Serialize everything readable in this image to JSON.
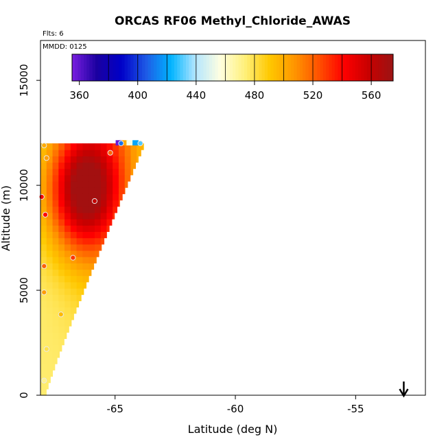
{
  "chart_data": {
    "type": "heatmap",
    "title": "ORCAS RF06 Methyl_Chloride_AWAS",
    "flights_note": "Flts: 6",
    "date_note": "MMDD: 0125",
    "xlabel": "Latitude (deg N)",
    "ylabel": "Altitude (m)",
    "xlim": [
      -68.1,
      -52.1
    ],
    "ylim": [
      0,
      16900
    ],
    "x_ticks": [
      -65,
      -60,
      -55
    ],
    "x_tick_labels": [
      "-65",
      "-60",
      "-55"
    ],
    "y_ticks": [
      0,
      5000,
      10000,
      15000
    ],
    "y_tick_labels": [
      "0",
      "5000",
      "10000",
      "15000"
    ],
    "colorbar": {
      "min": 355,
      "max": 575,
      "ticks": [
        360,
        400,
        440,
        480,
        520,
        560
      ],
      "tick_labels": [
        "360",
        "400",
        "440",
        "480",
        "520",
        "560"
      ],
      "palette": [
        "#7a1fe0",
        "#1a00a0",
        "#0000c8",
        "#1e5ae6",
        "#00b4ff",
        "#b4e6ff",
        "#ffffe0",
        "#fff07a",
        "#ffc800",
        "#ff9600",
        "#ff5000",
        "#ff0000",
        "#c80000",
        "#9b1414"
      ]
    },
    "field": {
      "lat_top_min": -68.1,
      "lat_top_max": -63.8,
      "lat_bottom_max": -67.9,
      "alt_top": 11900,
      "value_surface": 475,
      "value_peak": 567,
      "peak_lat": -66.3,
      "peak_alt": 9800
    },
    "top_row_special_cells": [
      {
        "lat": -64.85,
        "value": 358
      },
      {
        "lat": -64.6,
        "value": 500
      },
      {
        "lat": -64.4,
        "value": 455
      },
      {
        "lat": -64.15,
        "value": 420
      }
    ],
    "samples": [
      {
        "lat": -67.95,
        "alt": 11900,
        "value": 500
      },
      {
        "lat": -67.85,
        "alt": 11300,
        "value": 505
      },
      {
        "lat": -65.2,
        "alt": 11550,
        "value": 520
      },
      {
        "lat": -64.75,
        "alt": 12000,
        "value": 410
      },
      {
        "lat": -63.95,
        "alt": 12000,
        "value": 430
      },
      {
        "lat": -68.05,
        "alt": 9450,
        "value": 540
      },
      {
        "lat": -67.9,
        "alt": 8600,
        "value": 540
      },
      {
        "lat": -65.85,
        "alt": 9250,
        "value": 560
      },
      {
        "lat": -66.75,
        "alt": 6550,
        "value": 530
      },
      {
        "lat": -67.95,
        "alt": 6150,
        "value": 520
      },
      {
        "lat": -67.95,
        "alt": 4900,
        "value": 505
      },
      {
        "lat": -67.25,
        "alt": 3850,
        "value": 495
      },
      {
        "lat": -67.85,
        "alt": 2200,
        "value": 480
      },
      {
        "lat": -67.95,
        "alt": 700,
        "value": 470
      }
    ],
    "arrow_lat": -53.0
  }
}
